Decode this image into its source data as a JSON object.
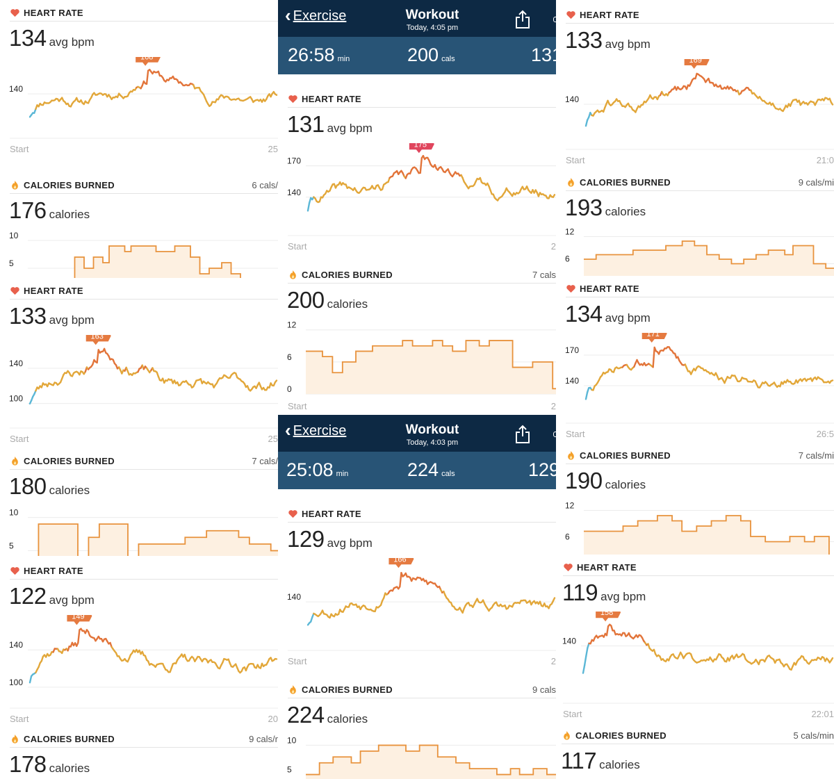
{
  "theme": {
    "line_low": "#e2a73a",
    "line_high": "#e2743a",
    "start_color": "#5bb7d6",
    "peak_badge": "#e57a40",
    "peak_badge_alt": "#e0455d",
    "cal_line": "#e8923c",
    "cal_fill": "#fdf0e1",
    "header_dark": "#0d2944",
    "header_stats": "#285476"
  },
  "columns": [
    {
      "id": "col-0",
      "blocks": [
        {
          "kind": "hr",
          "top": 0,
          "height": 227,
          "section_label": "HEART RATE",
          "value": "134",
          "unit": "avg bpm",
          "y_ticks": [
            {
              "v": 140,
              "label": "140"
            }
          ],
          "ymin": 90,
          "ymax": 180,
          "peak": {
            "label": "168",
            "pos": 0.48
          },
          "x_start": "Start",
          "x_end": "25",
          "series_seed": 11
        },
        {
          "kind": "cal",
          "top": 248,
          "height": 152,
          "section_label": "CALORIES BURNED",
          "value": "176",
          "unit": "calories",
          "rate": "6 cals/",
          "y_ticks": [
            {
              "v": 10,
              "label": "10"
            },
            {
              "v": 5,
              "label": "5"
            }
          ],
          "ymin": 3,
          "ymax": 11,
          "steps": [
            3,
            3,
            3,
            3,
            3,
            3,
            3,
            3,
            3,
            3,
            3,
            3,
            3,
            3,
            3,
            7,
            7,
            7,
            5,
            5,
            5,
            7,
            7,
            7,
            6,
            6,
            9,
            9,
            9,
            9,
            9,
            8,
            8,
            9,
            9,
            9,
            9,
            9,
            9,
            9,
            9,
            8,
            8,
            8,
            8,
            8,
            8,
            9,
            9,
            9,
            9,
            9,
            7,
            7,
            7,
            4,
            4,
            4,
            5,
            5,
            5,
            5,
            6,
            6,
            6,
            4,
            4,
            4,
            3,
            3,
            3,
            3,
            3,
            3,
            3,
            3,
            3,
            3,
            3,
            3
          ]
        },
        {
          "kind": "hr",
          "top": 400,
          "height": 244,
          "section_label": "HEART RATE",
          "value": "133",
          "unit": "avg bpm",
          "y_ticks": [
            {
              "v": 140,
              "label": "140"
            },
            {
              "v": 100,
              "label": "100"
            }
          ],
          "ymin": 80,
          "ymax": 170,
          "peak": {
            "label": "163",
            "pos": 0.28
          },
          "x_start": "Start",
          "x_end": "25",
          "series_seed": 23
        },
        {
          "kind": "cal",
          "top": 645,
          "height": 155,
          "section_label": "CALORIES BURNED",
          "value": "180",
          "unit": "calories",
          "rate": "7 cals/",
          "y_ticks": [
            {
              "v": 10,
              "label": "10"
            },
            {
              "v": 5,
              "label": "5"
            }
          ],
          "ymin": 4,
          "ymax": 11,
          "steps": [
            4,
            4,
            4,
            9,
            9,
            9,
            9,
            9,
            9,
            9,
            9,
            9,
            9,
            9,
            4,
            4,
            4,
            7,
            7,
            7,
            9,
            9,
            9,
            9,
            9,
            9,
            9,
            9,
            4,
            4,
            4,
            6,
            6,
            6,
            6,
            6,
            6,
            6,
            6,
            6,
            6,
            6,
            6,
            6,
            7,
            7,
            7,
            7,
            7,
            7,
            8,
            8,
            8,
            8,
            8,
            8,
            8,
            8,
            8,
            7,
            7,
            7,
            6,
            6,
            6,
            6,
            6,
            6,
            5,
            5
          ]
        },
        {
          "kind": "hr",
          "top": 803,
          "height": 244,
          "section_label": "HEART RATE",
          "value": "122",
          "unit": "avg bpm",
          "y_ticks": [
            {
              "v": 140,
              "label": "140"
            },
            {
              "v": 100,
              "label": "100"
            }
          ],
          "ymin": 85,
          "ymax": 170,
          "peak": {
            "label": "149",
            "pos": 0.2
          },
          "x_start": "Start",
          "x_end": "20",
          "series_seed": 37
        },
        {
          "kind": "cal",
          "top": 1045,
          "height": 76,
          "section_label": "CALORIES BURNED",
          "value": "178",
          "unit": "calories",
          "rate": "9 cals/r",
          "y_ticks": [],
          "ymin": 0,
          "ymax": 10,
          "steps": []
        }
      ]
    },
    {
      "id": "col-1",
      "blocks": [
        {
          "kind": "header",
          "top": 0,
          "back": "Exercise",
          "title": "Workout",
          "subtitle": "Today, 4:05 pm",
          "stats": [
            {
              "v": "26:58",
              "u": "min",
              "x": 14
            },
            {
              "v": "200",
              "u": "cals",
              "x": 186
            },
            {
              "v": "131",
              "u": "",
              "x": 364
            }
          ]
        },
        {
          "kind": "hr",
          "top": 124,
          "height": 243,
          "section_label": "HEART RATE",
          "value": "131",
          "unit": "avg bpm",
          "y_ticks": [
            {
              "v": 170,
              "label": "170"
            },
            {
              "v": 140,
              "label": "140"
            }
          ],
          "ymin": 110,
          "ymax": 185,
          "peak": {
            "label": "175",
            "pos": 0.46,
            "alt": true
          },
          "x_start": "Start",
          "x_end": "2",
          "series_seed": 41
        },
        {
          "kind": "cal",
          "top": 377,
          "height": 220,
          "section_label": "CALORIES BURNED",
          "value": "200",
          "unit": "calories",
          "rate": "7 cals",
          "y_ticks": [
            {
              "v": 12,
              "label": "12"
            },
            {
              "v": 6,
              "label": "6"
            },
            {
              "v": 0,
              "label": "0"
            }
          ],
          "ymin": 0,
          "ymax": 13,
          "x_start": "Start",
          "x_end": "2",
          "steps": [
            8,
            8,
            8,
            8,
            8,
            7,
            7,
            7,
            4,
            4,
            4,
            6,
            6,
            6,
            6,
            8,
            8,
            8,
            8,
            8,
            9,
            9,
            9,
            9,
            9,
            9,
            9,
            9,
            9,
            10,
            10,
            10,
            9,
            9,
            9,
            9,
            9,
            9,
            10,
            10,
            10,
            9,
            9,
            9,
            8,
            8,
            8,
            8,
            10,
            10,
            10,
            10,
            9,
            9,
            9,
            10,
            10,
            10,
            10,
            10,
            10,
            10,
            5,
            5,
            5,
            5,
            5,
            5,
            6,
            6,
            6,
            6,
            6,
            6,
            1
          ]
        },
        {
          "kind": "header",
          "top": 597,
          "back": "Exercise",
          "title": "Workout",
          "subtitle": "Today, 4:03 pm",
          "stats": [
            {
              "v": "25:08",
              "u": "min",
              "x": 12
            },
            {
              "v": "224",
              "u": "cals",
              "x": 186
            },
            {
              "v": "129",
              "u": "",
              "x": 360
            }
          ]
        },
        {
          "kind": "hr",
          "top": 721,
          "height": 243,
          "section_label": "HEART RATE",
          "value": "129",
          "unit": "avg bpm",
          "y_ticks": [
            {
              "v": 140,
              "label": "140"
            }
          ],
          "ymin": 95,
          "ymax": 180,
          "peak": {
            "label": "166",
            "pos": 0.38
          },
          "x_start": "Start",
          "x_end": "2",
          "series_seed": 53
        },
        {
          "kind": "cal",
          "top": 974,
          "height": 147,
          "section_label": "CALORIES BURNED",
          "value": "224",
          "unit": "calories",
          "rate": "9 cals",
          "y_ticks": [
            {
              "v": 10,
              "label": "10"
            },
            {
              "v": 5,
              "label": "5"
            }
          ],
          "ymin": 4,
          "ymax": 11,
          "steps": [
            5,
            5,
            5,
            7,
            7,
            7,
            8,
            8,
            8,
            8,
            7,
            7,
            9,
            9,
            9,
            9,
            10,
            10,
            10,
            10,
            10,
            10,
            9,
            9,
            9,
            10,
            10,
            10,
            10,
            8,
            8,
            8,
            8,
            7,
            7,
            7,
            6,
            6,
            6,
            6,
            6,
            6,
            5,
            5,
            5,
            6,
            6,
            5,
            5,
            5,
            6,
            6,
            6,
            5,
            5
          ]
        }
      ]
    },
    {
      "id": "col-2",
      "blocks": [
        {
          "kind": "hr",
          "top": 3,
          "height": 240,
          "section_label": "HEART RATE",
          "value": "133",
          "unit": "avg bpm",
          "y_ticks": [
            {
              "v": 140,
              "label": "140"
            }
          ],
          "ymin": 100,
          "ymax": 180,
          "peak": {
            "label": "169",
            "pos": 0.45
          },
          "x_start": "Start",
          "x_end": "21:0",
          "series_seed": 61
        },
        {
          "kind": "cal",
          "top": 244,
          "height": 153,
          "section_label": "CALORIES BURNED",
          "value": "193",
          "unit": "calories",
          "rate": "9 cals/mi",
          "y_ticks": [
            {
              "v": 12,
              "label": "12"
            },
            {
              "v": 6,
              "label": "6"
            }
          ],
          "ymin": 3,
          "ymax": 13,
          "steps": [
            7,
            7,
            7,
            8,
            8,
            8,
            8,
            8,
            8,
            8,
            8,
            8,
            9,
            9,
            9,
            9,
            9,
            9,
            9,
            9,
            10,
            10,
            10,
            10,
            11,
            11,
            11,
            10,
            10,
            10,
            8,
            8,
            8,
            7,
            7,
            7,
            6,
            6,
            6,
            7,
            7,
            7,
            8,
            8,
            8,
            9,
            9,
            9,
            9,
            8,
            8,
            10,
            10,
            10,
            10,
            10,
            6,
            6,
            6,
            5,
            5
          ]
        },
        {
          "kind": "hr",
          "top": 397,
          "height": 240,
          "section_label": "HEART RATE",
          "value": "134",
          "unit": "avg bpm",
          "y_ticks": [
            {
              "v": 170,
              "label": "170"
            },
            {
              "v": 140,
              "label": "140"
            }
          ],
          "ymin": 110,
          "ymax": 185,
          "peak": {
            "label": "171",
            "pos": 0.28
          },
          "x_start": "Start",
          "x_end": "26:5",
          "series_seed": 73
        },
        {
          "kind": "cal",
          "top": 637,
          "height": 163,
          "section_label": "CALORIES BURNED",
          "value": "190",
          "unit": "calories",
          "rate": "7 cals/mi",
          "y_ticks": [
            {
              "v": 12,
              "label": "12"
            },
            {
              "v": 6,
              "label": "6"
            }
          ],
          "ymin": 3,
          "ymax": 13,
          "steps": [
            8,
            8,
            8,
            8,
            8,
            8,
            8,
            8,
            9,
            9,
            9,
            10,
            10,
            10,
            10,
            11,
            11,
            11,
            10,
            10,
            8,
            8,
            8,
            9,
            9,
            9,
            10,
            10,
            10,
            11,
            11,
            11,
            10,
            10,
            7,
            7,
            7,
            6,
            6,
            6,
            6,
            6,
            7,
            7,
            7,
            6,
            6,
            7,
            7,
            7,
            3
          ]
        },
        {
          "kind": "hr",
          "top": 798,
          "height": 242,
          "section_label": "HEART RATE",
          "value": "119",
          "unit": "avg bpm",
          "y_ticks": [
            {
              "v": 140,
              "label": "140"
            }
          ],
          "ymin": 85,
          "ymax": 170,
          "peak": {
            "label": "158",
            "pos": 0.1
          },
          "x_start": "Start",
          "x_end": "22:01",
          "series_seed": 89,
          "left_pad": -4
        },
        {
          "kind": "cal",
          "top": 1040,
          "height": 81,
          "section_label": "CALORIES BURNED",
          "value": "117",
          "unit": "calories",
          "rate": "5 cals/min",
          "y_ticks": [],
          "ymin": 0,
          "ymax": 10,
          "steps": [],
          "left_pad": -6
        }
      ]
    }
  ]
}
